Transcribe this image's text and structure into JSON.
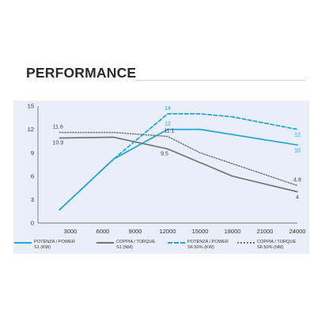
{
  "heading": "PERFORMANCE",
  "colors": {
    "blue": "#1fa5d8",
    "gray": "#777777",
    "dotted_gray": "#777777"
  },
  "chart_data": {
    "type": "line",
    "xlim": [
      0,
      24000
    ],
    "ylim": [
      0,
      15
    ],
    "x_ticks": [
      "3000",
      "6000",
      "9000",
      "12000",
      "15000",
      "18000",
      "21000",
      "24000"
    ],
    "y_ticks": [
      "0",
      "3",
      "6",
      "9",
      "12",
      "15"
    ],
    "grid": false,
    "legend_position": "bottom",
    "series": [
      {
        "name": "POTENZA / POWER S1 (KW)",
        "legend_lines": [
          "POTENZA / POWER",
          "S1 (KW)"
        ],
        "style": "solid",
        "color": "#1fa5d8",
        "x": [
          2000,
          7000,
          12000,
          15000,
          24000
        ],
        "y": [
          1.7,
          8.2,
          12,
          12,
          10
        ],
        "labels": [
          {
            "x": 12000,
            "y": 12,
            "text": "12"
          },
          {
            "x": 24000,
            "y": 10,
            "text": "10"
          }
        ]
      },
      {
        "name": "COPPIA / TORQUE S1 (NM)",
        "legend_lines": [
          "COPPIA / TORQUE",
          "S1 (NM)"
        ],
        "style": "solid",
        "color": "#777777",
        "x": [
          2000,
          7000,
          12000,
          18000,
          24000
        ],
        "y": [
          10.9,
          11,
          9.5,
          6,
          4
        ],
        "labels": [
          {
            "x": 2000,
            "y": 10.9,
            "text": "10.9"
          },
          {
            "x": 12000,
            "y": 9.5,
            "text": "9.5"
          },
          {
            "x": 24000,
            "y": 4,
            "text": "4"
          }
        ]
      },
      {
        "name": "POTENZA / POWER S6 50% (KW)",
        "legend_lines": [
          "POTENZA / POWER",
          "S6 50% (KW)"
        ],
        "style": "dashed",
        "color": "#1fa5d8",
        "x": [
          2000,
          7000,
          12000,
          15000,
          18000,
          24000
        ],
        "y": [
          1.7,
          8.2,
          14,
          14,
          13.6,
          12
        ],
        "labels": [
          {
            "x": 12000,
            "y": 14,
            "text": "14"
          },
          {
            "x": 24000,
            "y": 12,
            "text": "12"
          }
        ]
      },
      {
        "name": "COPPIA / TORQUE S6 50% (NM)",
        "legend_lines": [
          "COPPIA / TORQUE",
          "S6 50% (NM)"
        ],
        "style": "dotted",
        "color": "#777777",
        "x": [
          2000,
          7000,
          12000,
          15000,
          24000
        ],
        "y": [
          11.6,
          11.6,
          11.1,
          9,
          4.8
        ],
        "labels": [
          {
            "x": 2000,
            "y": 11.6,
            "text": "11.6"
          },
          {
            "x": 12000,
            "y": 11.1,
            "text": "11.1"
          },
          {
            "x": 24000,
            "y": 4.8,
            "text": "4.8"
          }
        ]
      }
    ]
  }
}
